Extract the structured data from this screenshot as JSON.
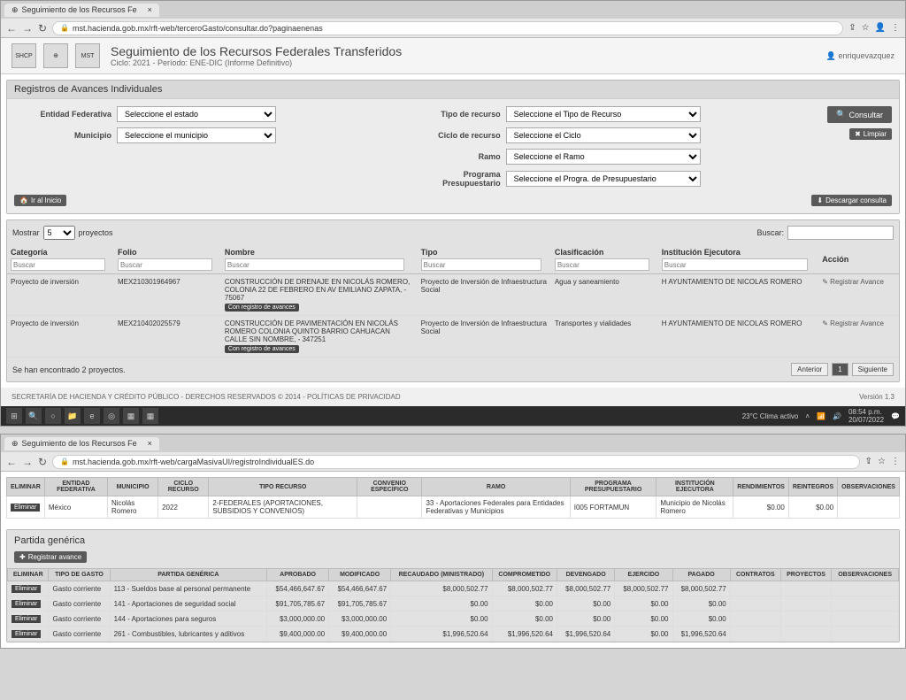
{
  "browser1": {
    "tab_title": "Seguimiento de los Recursos Fe",
    "url": "mst.hacienda.gob.mx/rft-web/terceroGasto/consultar.do?paginaenenas",
    "nav_back": "←",
    "nav_fwd": "→",
    "nav_reload": "↻"
  },
  "header": {
    "logo1": "SHCP",
    "logo2": "⊕",
    "logo3": "MST",
    "title": "Seguimiento de los Recursos Federales Transferidos",
    "subtitle": "Ciclo: 2021 - Período: ENE-DIC (Informe Definitivo)",
    "user": "enriquevazquez"
  },
  "filter_panel": {
    "title": "Registros de Avances Individuales",
    "labels": {
      "entidad": "Entidad Federativa",
      "municipio": "Municipio",
      "tipo_recurso": "Tipo de recurso",
      "ciclo": "Ciclo de recurso",
      "ramo": "Ramo",
      "programa": "Programa Presupuestario"
    },
    "selects": {
      "entidad": "Seleccione el estado",
      "municipio": "Seleccione el municipio",
      "tipo_recurso": "Seleccione el Tipo de Recurso",
      "ciclo": "Seleccione el Ciclo",
      "ramo": "Seleccione el Ramo",
      "programa": "Seleccione el Progra. de Presupuestario"
    },
    "btn_consultar": "Consultar",
    "btn_limpiar": "Limpiar",
    "btn_inicio": "Ir al Inicio",
    "btn_descargar": "Descargar consulta"
  },
  "results": {
    "mostrar": "Mostrar",
    "page_size": "5",
    "proyectos": "proyectos",
    "buscar_label": "Buscar:",
    "cols": {
      "categoria": "Categoría",
      "folio": "Folio",
      "nombre": "Nombre",
      "tipo": "Tipo",
      "clasificacion": "Clasificación",
      "institucion": "Institución Ejecutora",
      "accion": "Acción"
    },
    "search_ph": "Buscar",
    "rows": [
      {
        "categoria": "Proyecto de inversión",
        "folio": "MEX210301964967",
        "nombre": "CONSTRUCCIÓN DE DRENAJE EN NICOLÁS ROMERO, COLONIA 22 DE FEBRERO EN AV EMILIANO ZAPATA, - 75067",
        "tipo": "Proyecto de Inversión de Infraestructura Social",
        "clasificacion": "Agua y saneamiento",
        "institucion": "H AYUNTAMIENTO DE NICOLAS ROMERO",
        "accion": "Registrar Avance"
      },
      {
        "categoria": "Proyecto de inversión",
        "folio": "MEX210402025579",
        "nombre": "CONSTRUCCIÓN DE PAVIMENTACIÓN EN NICOLÁS ROMERO COLONIA QUINTO BARRIO CAHUACAN CALLE SIN NOMBRE, - 347251",
        "tipo": "Proyecto de Inversión de Infraestructura Social",
        "clasificacion": "Transportes y vialidades",
        "institucion": "H AYUNTAMIENTO DE NICOLAS ROMERO",
        "accion": "Registrar Avance"
      }
    ],
    "badge": "Con registro de avances",
    "footer_text": "Se han encontrado 2 proyectos.",
    "anterior": "Anterior",
    "page1": "1",
    "siguiente": "Siguiente"
  },
  "footer": {
    "left": "SECRETARÍA DE HACIENDA Y CRÉDITO PÚBLICO - DERECHOS RESERVADOS © 2014 - POLÍTICAS DE PRIVACIDAD",
    "right": "Versión 1.3"
  },
  "taskbar": {
    "weather": "23°C Clima activo",
    "time": "08:54 p.m.",
    "date": "20/07/2022"
  },
  "browser2": {
    "tab_title": "Seguimiento de los Recursos Fe",
    "url": "mst.hacienda.gob.mx/rft-web/cargaMasivaUI/registroIndividualES.do"
  },
  "top_table": {
    "cols": {
      "eliminar": "ELIMINAR",
      "entidad": "ENTIDAD FEDERATIVA",
      "municipio": "MUNICIPIO",
      "ciclo": "CICLO RECURSO",
      "tipo": "TIPO RECURSO",
      "convenio": "CONVENIO ESPECÍFICO",
      "ramo": "RAMO",
      "programa": "PROGRAMA PRESUPUESTARIO",
      "institucion": "INSTITUCIÓN EJECUTORA",
      "rendimientos": "RENDIMIENTOS",
      "reintegros": "REINTEGROS",
      "observaciones": "OBSERVACIONES"
    },
    "row": {
      "del": "Eliminar",
      "entidad": "México",
      "municipio": "Nicolás Romero",
      "ciclo": "2022",
      "tipo": "2-FEDERALES (APORTACIONES, SUBSIDIOS Y CONVENIOS)",
      "convenio": "",
      "ramo": "33 - Aportaciones Federales para Entidades Federativas y Municipios",
      "programa": "I005 FORTAMUN",
      "institucion": "Municipio de Nicolás Romero",
      "rendimientos": "$0.00",
      "reintegros": "$0.00",
      "observaciones": ""
    }
  },
  "partida": {
    "title": "Partida genérica",
    "btn_registrar": "Registrar avance",
    "cols": {
      "eliminar": "ELIMINAR",
      "tipo_gasto": "TIPO DE GASTO",
      "partida": "PARTIDA GENÉRICA",
      "aprobado": "APROBADO",
      "modificado": "MODIFICADO",
      "recaudado": "RECAUDADO (MINISTRADO)",
      "comprometido": "COMPROMETIDO",
      "devengado": "DEVENGADO",
      "ejercido": "EJERCIDO",
      "pagado": "PAGADO",
      "contratos": "CONTRATOS",
      "proyectos": "PROYECTOS",
      "observaciones": "OBSERVACIONES"
    },
    "rows": [
      {
        "del": "Eliminar",
        "tipo": "Gasto corriente",
        "partida": "113 - Sueldos base al personal permanente",
        "aprobado": "$54,466,647.67",
        "modificado": "$54,466,647.67",
        "recaudado": "$8,000,502.77",
        "comprometido": "$8,000,502.77",
        "devengado": "$8,000,502.77",
        "ejercido": "$8,000,502.77",
        "pagado": "$8,000,502.77"
      },
      {
        "del": "Eliminar",
        "tipo": "Gasto corriente",
        "partida": "141 - Aportaciones de seguridad social",
        "aprobado": "$91,705,785.67",
        "modificado": "$91,705,785.67",
        "recaudado": "$0.00",
        "comprometido": "$0.00",
        "devengado": "$0.00",
        "ejercido": "$0.00",
        "pagado": "$0.00"
      },
      {
        "del": "Eliminar",
        "tipo": "Gasto corriente",
        "partida": "144 - Aportaciones para seguros",
        "aprobado": "$3,000,000.00",
        "modificado": "$3,000,000.00",
        "recaudado": "$0.00",
        "comprometido": "$0.00",
        "devengado": "$0.00",
        "ejercido": "$0.00",
        "pagado": "$0.00"
      },
      {
        "del": "Eliminar",
        "tipo": "Gasto corriente",
        "partida": "261 - Combustibles, lubricantes y aditivos",
        "aprobado": "$9,400,000.00",
        "modificado": "$9,400,000.00",
        "recaudado": "$1,996,520.64",
        "comprometido": "$1,996,520.64",
        "devengado": "$1,996,520.64",
        "ejercido": "$0.00",
        "pagado": "$1,996,520.64"
      }
    ]
  }
}
